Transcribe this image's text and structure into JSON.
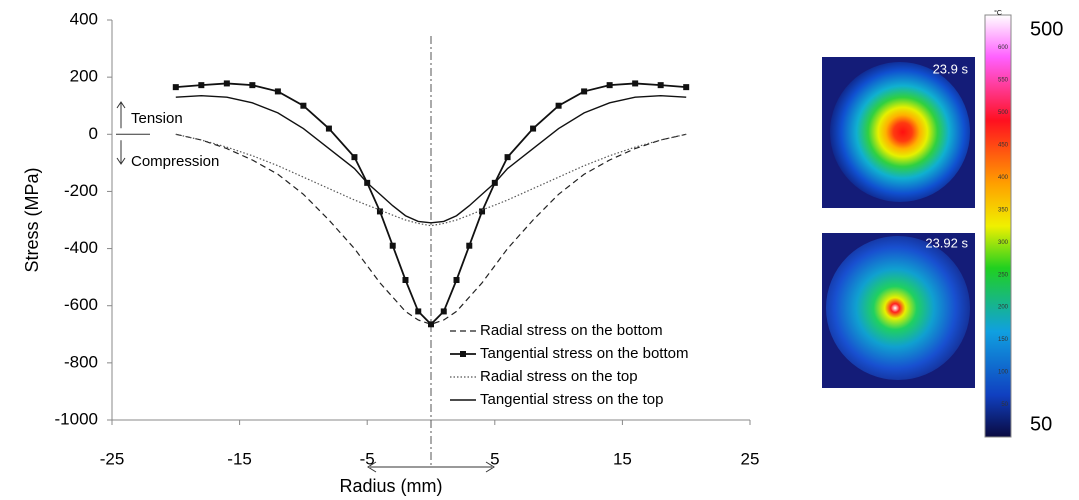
{
  "chart_data": {
    "type": "line",
    "xlabel": "Radius (mm)",
    "ylabel": "Stress (MPa)",
    "xlim": [
      -25,
      25
    ],
    "xticks": [
      -25,
      -15,
      -5,
      5,
      15,
      25
    ],
    "ylim": [
      -1000,
      400
    ],
    "yticks": [
      -1000,
      -800,
      -600,
      -400,
      -200,
      0,
      200,
      400
    ],
    "x": [
      -20,
      -18,
      -16,
      -14,
      -12,
      -10,
      -8,
      -6,
      -5,
      -4,
      -3,
      -2,
      -1,
      0,
      1,
      2,
      3,
      4,
      5,
      6,
      8,
      10,
      12,
      14,
      16,
      18,
      20
    ],
    "series": [
      {
        "name": "Radial stress on the bottom",
        "color": "#222222",
        "style": "dashed",
        "values": [
          0,
          -20,
          -50,
          -90,
          -140,
          -210,
          -300,
          -400,
          -460,
          -520,
          -570,
          -620,
          -650,
          -665,
          -650,
          -620,
          -570,
          -520,
          -460,
          -400,
          -300,
          -210,
          -140,
          -90,
          -50,
          -20,
          0
        ]
      },
      {
        "name": "Tangential stress on the bottom",
        "color": "#111111",
        "style": "square-markers",
        "values": [
          165,
          172,
          178,
          172,
          150,
          100,
          20,
          -80,
          -170,
          -270,
          -390,
          -510,
          -620,
          -665,
          -620,
          -510,
          -390,
          -270,
          -170,
          -80,
          20,
          100,
          150,
          172,
          178,
          172,
          165
        ]
      },
      {
        "name": "Radial stress on the top",
        "color": "#555555",
        "style": "dotted",
        "values": [
          0,
          -20,
          -45,
          -75,
          -110,
          -150,
          -190,
          -230,
          -248,
          -265,
          -283,
          -300,
          -312,
          -320,
          -312,
          -300,
          -283,
          -265,
          -248,
          -230,
          -190,
          -150,
          -110,
          -75,
          -45,
          -20,
          0
        ]
      },
      {
        "name": "Tangential stress on the top",
        "color": "#111111",
        "style": "solid",
        "values": [
          130,
          135,
          130,
          110,
          75,
          20,
          -50,
          -120,
          -170,
          -210,
          -250,
          -285,
          -305,
          -310,
          -305,
          -285,
          -250,
          -210,
          -170,
          -120,
          -50,
          20,
          75,
          110,
          130,
          135,
          130
        ]
      }
    ],
    "annotations": [
      "Tension",
      "Compression"
    ]
  },
  "thermal": {
    "times": [
      "23.9 s",
      "23.92 s"
    ],
    "unit": "°C",
    "clim": [
      0,
      650
    ],
    "cticks": [
      600,
      550,
      500,
      450,
      400,
      350,
      300,
      250,
      200,
      150,
      100,
      50
    ],
    "max_label": "500",
    "min_label": "50"
  }
}
